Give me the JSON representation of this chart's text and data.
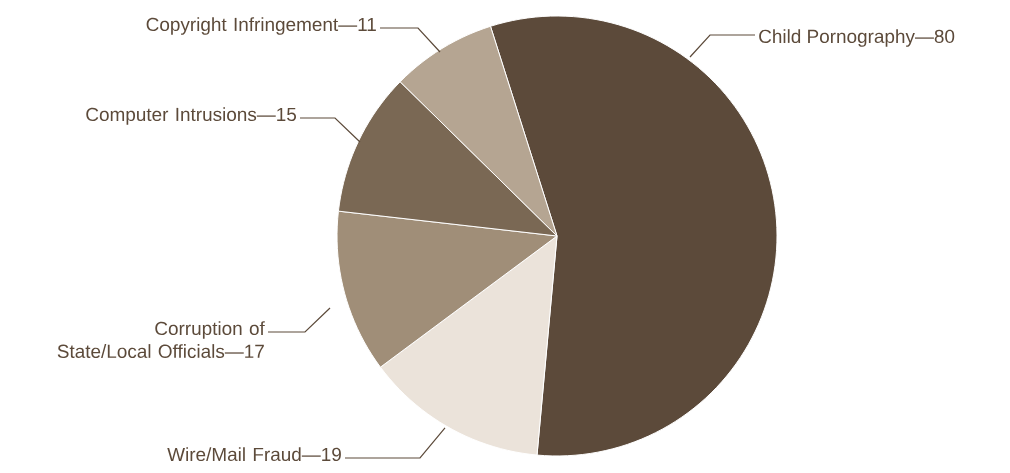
{
  "chart_data": {
    "type": "pie",
    "categories": [
      "Child Pornography",
      "Wire/Mail Fraud",
      "Corruption of State/Local Officials",
      "Computer Intrusions",
      "Copyright Infringement"
    ],
    "values": [
      80,
      19,
      17,
      15,
      11
    ],
    "value_labels": [
      "—80",
      "—19",
      "—17",
      "—15",
      "—11"
    ],
    "colors": [
      "#5c4a3a",
      "#ebe3da",
      "#a08e78",
      "#7a6854",
      "#b5a592"
    ]
  }
}
